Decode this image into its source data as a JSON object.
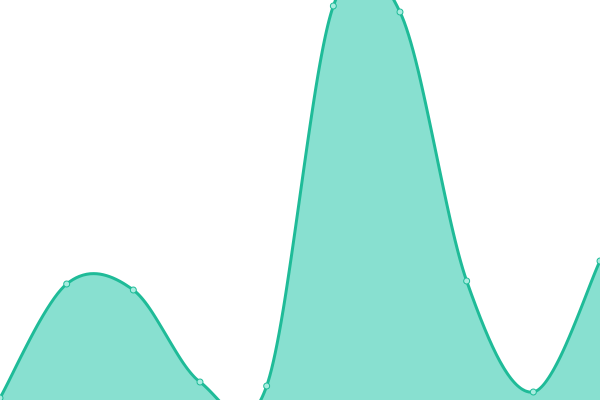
{
  "chart_data": {
    "type": "area",
    "title": "",
    "xlabel": "",
    "ylabel": "",
    "x": [
      0,
      1,
      2,
      3,
      4,
      5,
      6,
      7,
      8,
      9
    ],
    "series": [
      {
        "values": [
          2,
          116,
          110,
          18,
          14,
          394,
          388,
          119,
          8,
          139
        ]
      }
    ],
    "ylim": [
      0,
      400
    ],
    "grid": false,
    "axes_visible": false,
    "smooth": true,
    "colors": {
      "fill": "#88e0d0",
      "line": "#1fbb98",
      "marker_fill": "#a8ecdf"
    }
  }
}
